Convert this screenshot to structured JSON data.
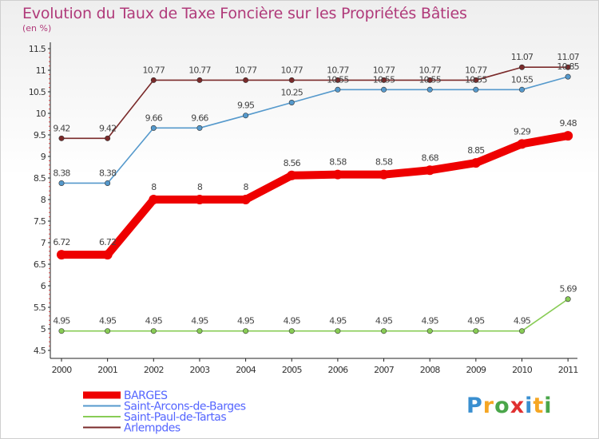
{
  "title": "Evolution du Taux de Taxe Foncière sur les Propriétés Bâties",
  "subtitle": "(en %)",
  "logo": {
    "letters": [
      "P",
      "r",
      "o",
      "x",
      "i",
      "t",
      "i"
    ],
    "colors": [
      "#3a8fd0",
      "#f5a623",
      "#4aa64a",
      "#e03030",
      "#3a8fd0",
      "#f5a623",
      "#4aa64a"
    ]
  },
  "chart_data": {
    "type": "line",
    "x": [
      "2000",
      "2001",
      "2002",
      "2003",
      "2004",
      "2005",
      "2006",
      "2007",
      "2008",
      "2009",
      "2010",
      "2011"
    ],
    "yticks": [
      "4.5",
      "5",
      "5.5",
      "6",
      "6.5",
      "7",
      "7.5",
      "8",
      "8.5",
      "9",
      "9.5",
      "10",
      "10.5",
      "11",
      "11.5"
    ],
    "ylim": [
      4.5,
      11.5
    ],
    "grid": false,
    "series": [
      {
        "name": "Arlempdes",
        "color": "#7a2a2a",
        "values": [
          9.42,
          9.42,
          10.77,
          10.77,
          10.77,
          10.77,
          10.77,
          10.77,
          10.77,
          10.77,
          11.07,
          11.07
        ]
      },
      {
        "name": "Saint-Arcons-de-Barges",
        "color": "#5599cc",
        "values": [
          8.38,
          8.38,
          9.66,
          9.66,
          9.95,
          10.25,
          10.55,
          10.55,
          10.55,
          10.55,
          10.55,
          10.85
        ]
      },
      {
        "name": "Saint-Paul-de-Tartas",
        "color": "#88cc55",
        "values": [
          4.95,
          4.95,
          4.95,
          4.95,
          4.95,
          4.95,
          4.95,
          4.95,
          4.95,
          4.95,
          4.95,
          5.69
        ]
      },
      {
        "name": "BARGES",
        "color": "#ee0000",
        "values": [
          6.72,
          6.72,
          8,
          8,
          8,
          8.56,
          8.58,
          8.58,
          8.68,
          8.85,
          9.29,
          9.48
        ]
      }
    ],
    "labels": {
      "Arlempdes": [
        "9.42",
        "9.42",
        "10.77",
        "10.77",
        "10.77",
        "10.77",
        "10.77",
        "10.77",
        "10.77",
        "10.77",
        "11.07",
        "11.07"
      ],
      "Saint-Arcons-de-Barges": [
        "8.38",
        "8.38",
        "9.66",
        "9.66",
        "9.95",
        "10.25",
        "10.55",
        "10.55",
        "10.55",
        "10.55",
        "10.55",
        "10.85"
      ],
      "Saint-Paul-de-Tartas": [
        "4.95",
        "4.95",
        "4.95",
        "4.95",
        "4.95",
        "4.95",
        "4.95",
        "4.95",
        "4.95",
        "4.95",
        "4.95",
        "5.69"
      ],
      "BARGES": [
        "6.72",
        "6.72",
        "8",
        "8",
        "8",
        "8.56",
        "8.58",
        "8.58",
        "8.68",
        "8.85",
        "9.29",
        "9.48"
      ]
    },
    "legend": [
      "BARGES",
      "Saint-Arcons-de-Barges",
      "Saint-Paul-de-Tartas",
      "Arlempdes"
    ],
    "legend_position": "bottom-left"
  }
}
